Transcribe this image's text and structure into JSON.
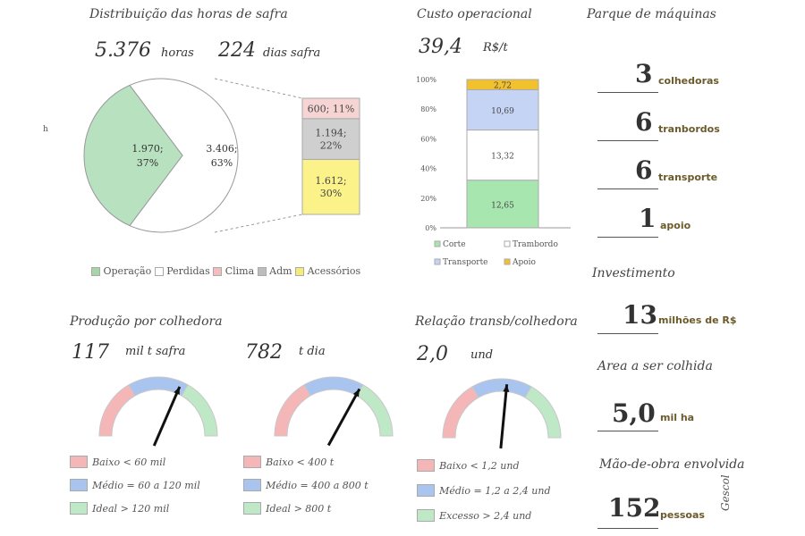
{
  "harvest": {
    "title": "Distribuição das horas de safra",
    "hours_value": "5.376",
    "hours_unit": "horas",
    "days_value": "224",
    "days_unit": "dias safra",
    "stray_label": "h"
  },
  "chart_data": [
    {
      "type": "pie",
      "title": "Distribuição das horas de safra",
      "slices": [
        {
          "label": "1.970;\n37%",
          "value": 1970,
          "color": "#b7e1bf"
        },
        {
          "label": "3.406;\n63%",
          "value": 3406,
          "color": "#ffffff"
        }
      ],
      "breakdown": [
        {
          "label": "600; 11%",
          "value": 600,
          "color": "#f7d4d4"
        },
        {
          "label": "1.194;\n22%",
          "value": 1194,
          "color": "#cfcfcf"
        },
        {
          "label": "1.612;\n30%",
          "value": 1612,
          "color": "#fbf38a"
        }
      ],
      "legend": [
        {
          "label": "Operação",
          "color": "#a5d6a7"
        },
        {
          "label": "Perdidas",
          "color": "#ffffff"
        },
        {
          "label": "Clima",
          "color": "#f4bcbc"
        },
        {
          "label": "Adm",
          "color": "#bdbdbd"
        },
        {
          "label": "Acessórios",
          "color": "#f3ee7a"
        }
      ]
    },
    {
      "type": "bar",
      "stacked": true,
      "title": "Custo operacional",
      "yticks": [
        "100%",
        "80%",
        "60%",
        "40%",
        "20%",
        "0%"
      ],
      "series": [
        {
          "name": "Corte",
          "value": 12.65,
          "label": "12,65",
          "color": "#a8e6b0"
        },
        {
          "name": "Trambordo",
          "value": 13.32,
          "label": "13,32",
          "color": "#ffffff"
        },
        {
          "name": "Transporte",
          "value": 10.69,
          "label": "10,69",
          "color": "#c5d4f5"
        },
        {
          "name": "Apoio",
          "value": 2.72,
          "label": "2,72",
          "color": "#f2c12e"
        }
      ],
      "legend": [
        "Corte",
        "Trambordo",
        "Transporte",
        "Apoio"
      ]
    }
  ],
  "cost": {
    "title": "Custo operacional",
    "value": "39,4",
    "unit": "R$/t"
  },
  "machines": {
    "title": "Parque de máquinas",
    "items": [
      {
        "value": "3",
        "unit": "colhedoras"
      },
      {
        "value": "6",
        "unit": "tranbordos"
      },
      {
        "value": "6",
        "unit": "transporte"
      },
      {
        "value": "1",
        "unit": "apoio"
      }
    ]
  },
  "investment": {
    "title": "Investimento",
    "value": "13",
    "unit": "milhões de R$"
  },
  "area": {
    "title": "Area a ser colhida",
    "value": "5,0",
    "unit": "mil ha"
  },
  "labor": {
    "title": "Mão-de-obra envolvida",
    "value": "152",
    "unit": "pessoas"
  },
  "brand": "Gescol",
  "production": {
    "title": "Produção por colhedora",
    "gauge1": {
      "value": "117",
      "unit": "mil t safra",
      "needle": 0.63,
      "legend": [
        "Baixo < 60 mil",
        "Médio = 60 a 120 mil",
        "Ideal > 120 mil"
      ]
    },
    "gauge2": {
      "value": "782",
      "unit": "t dia",
      "needle": 0.66,
      "legend": [
        "Baixo < 400 t",
        "Médio = 400 a 800 t",
        "Ideal > 800 t"
      ]
    }
  },
  "ratio": {
    "title": "Relação transb/colhedora",
    "value": "2,0",
    "unit": "und",
    "needle": 0.53,
    "legend": [
      "Baixo < 1,2 und",
      "Médio = 1,2 a 2,4 und",
      "Excesso > 2,4 und"
    ]
  },
  "gauge_colors": {
    "low": "#f4b6b6",
    "mid": "#a9c4ef",
    "high": "#bfe8c6"
  }
}
